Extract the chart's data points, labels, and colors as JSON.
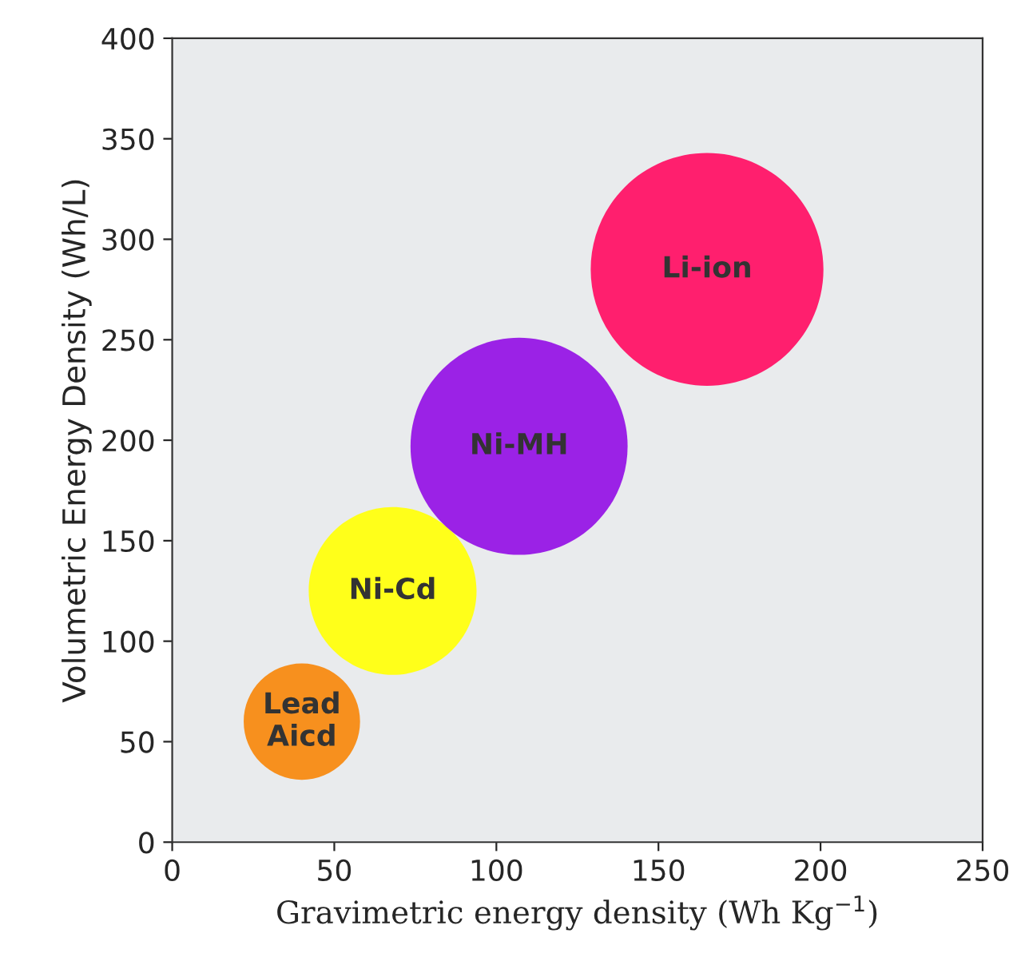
{
  "chart_data": {
    "type": "bubble",
    "xlabel": "Gravimetric energy density (Wh Kg$^{−1}$)",
    "ylabel": "Volumetric Energy Density (Wh/L)",
    "series": [
      {
        "name": "Lead\nAicd",
        "color": "#f7901e",
        "x": [
          40
        ],
        "values": [
          60
        ],
        "sizes": [
          0.25
        ]
      },
      {
        "name": "Ni-Cd",
        "color": "#ffff1a",
        "x": [
          68
        ],
        "values": [
          125
        ],
        "sizes": [
          0.52
        ]
      },
      {
        "name": "Ni-MH",
        "color": "#9b22e6",
        "x": [
          107
        ],
        "values": [
          197
        ],
        "sizes": [
          0.87
        ]
      },
      {
        "name": "Li-ion",
        "color": "#ff1f6e",
        "x": [
          165
        ],
        "values": [
          285
        ],
        "sizes": [
          1
        ]
      }
    ],
    "xlim": [
      0,
      250
    ],
    "xticks": [
      0,
      50,
      100,
      150,
      200,
      250
    ],
    "ylim": [
      0,
      400
    ],
    "yticks": [
      0,
      50,
      100,
      150,
      200,
      250,
      300,
      350,
      400
    ],
    "grid": false,
    "legend": false
  }
}
